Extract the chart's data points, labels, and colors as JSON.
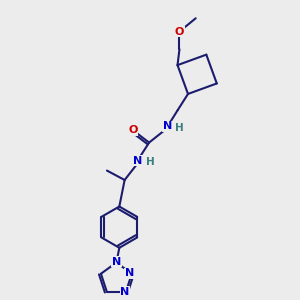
{
  "bg_color": "#ececec",
  "bond_color": "#1c1c6e",
  "atom_O": "#cc0000",
  "atom_N": "#0000cc",
  "atom_H": "#3a8080",
  "bond_lw": 1.5,
  "font_size": 8.0,
  "fig_w": 3.0,
  "fig_h": 3.0,
  "dpi": 100,
  "xlim": [
    0,
    10
  ],
  "ylim": [
    0,
    10
  ]
}
